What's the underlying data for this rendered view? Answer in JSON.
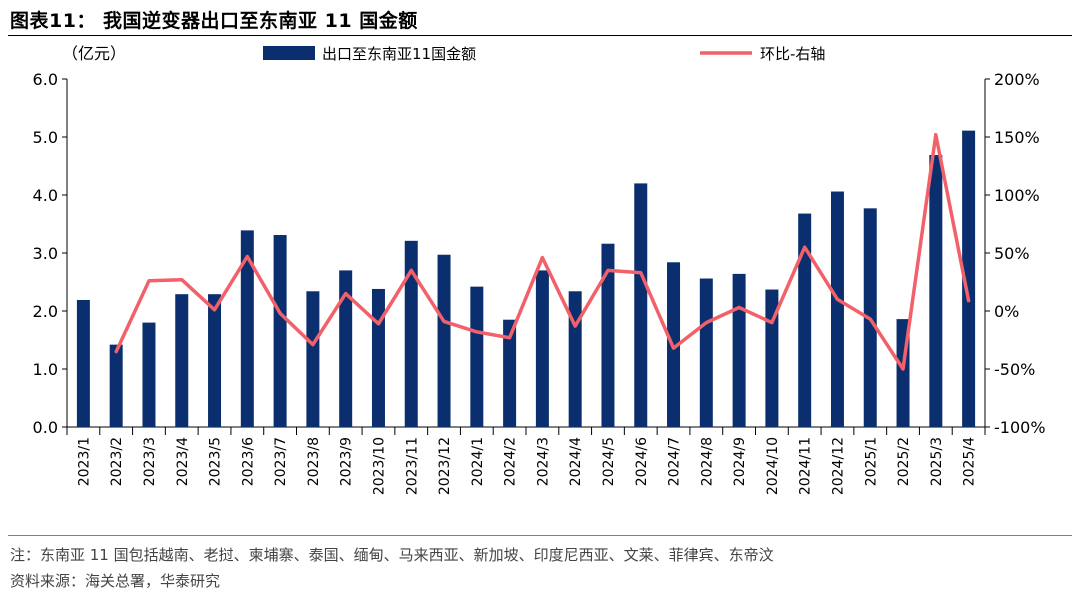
{
  "title": "图表11：  我国逆变器出口至东南亚 11 国金额",
  "chart_data": {
    "type": "bar+line",
    "categories": [
      "2023/1",
      "2023/2",
      "2023/3",
      "2023/4",
      "2023/5",
      "2023/6",
      "2023/7",
      "2023/8",
      "2023/9",
      "2023/10",
      "2023/11",
      "2023/12",
      "2024/1",
      "2024/2",
      "2024/3",
      "2024/4",
      "2024/5",
      "2024/6",
      "2024/7",
      "2024/8",
      "2024/9",
      "2024/10",
      "2024/11",
      "2024/12",
      "2025/1",
      "2025/2",
      "2025/3",
      "2025/4"
    ],
    "left_axis_unit": "（亿元）",
    "left_ticks": [
      "0.0",
      "1.0",
      "2.0",
      "3.0",
      "4.0",
      "5.0",
      "6.0"
    ],
    "right_ticks": [
      "-100%",
      "-50%",
      "0%",
      "50%",
      "100%",
      "150%",
      "200%"
    ],
    "ylim_left": [
      0,
      6
    ],
    "ylim_right": [
      -100,
      200
    ],
    "series": [
      {
        "name": "出口至东南亚11国金额",
        "type": "bar",
        "axis": "left",
        "color": "#0b2f6e",
        "values": [
          2.19,
          1.42,
          1.8,
          2.29,
          2.29,
          3.39,
          3.31,
          2.34,
          2.7,
          2.38,
          3.21,
          2.97,
          2.42,
          1.85,
          2.7,
          2.34,
          3.16,
          4.2,
          2.84,
          2.56,
          2.64,
          2.37,
          3.68,
          4.06,
          3.77,
          1.86,
          4.69,
          5.11
        ]
      },
      {
        "name": "环比-右轴",
        "type": "line",
        "axis": "right",
        "color": "#f2606a",
        "values": [
          null,
          -35,
          26,
          27,
          1,
          47,
          -2,
          -29,
          15,
          -11,
          35,
          -9,
          -18,
          -23,
          46,
          -13,
          35,
          33,
          -32,
          -10,
          3,
          -10,
          55,
          10,
          -7,
          -50,
          152,
          9
        ]
      }
    ],
    "legend_position": "top",
    "grid": false
  },
  "notes": {
    "note": "注：东南亚 11 国包括越南、老挝、柬埔寨、泰国、缅甸、马来西亚、新加坡、印度尼西亚、文莱、菲律宾、东帝汶",
    "source": "资料来源：海关总署，华泰研究"
  }
}
